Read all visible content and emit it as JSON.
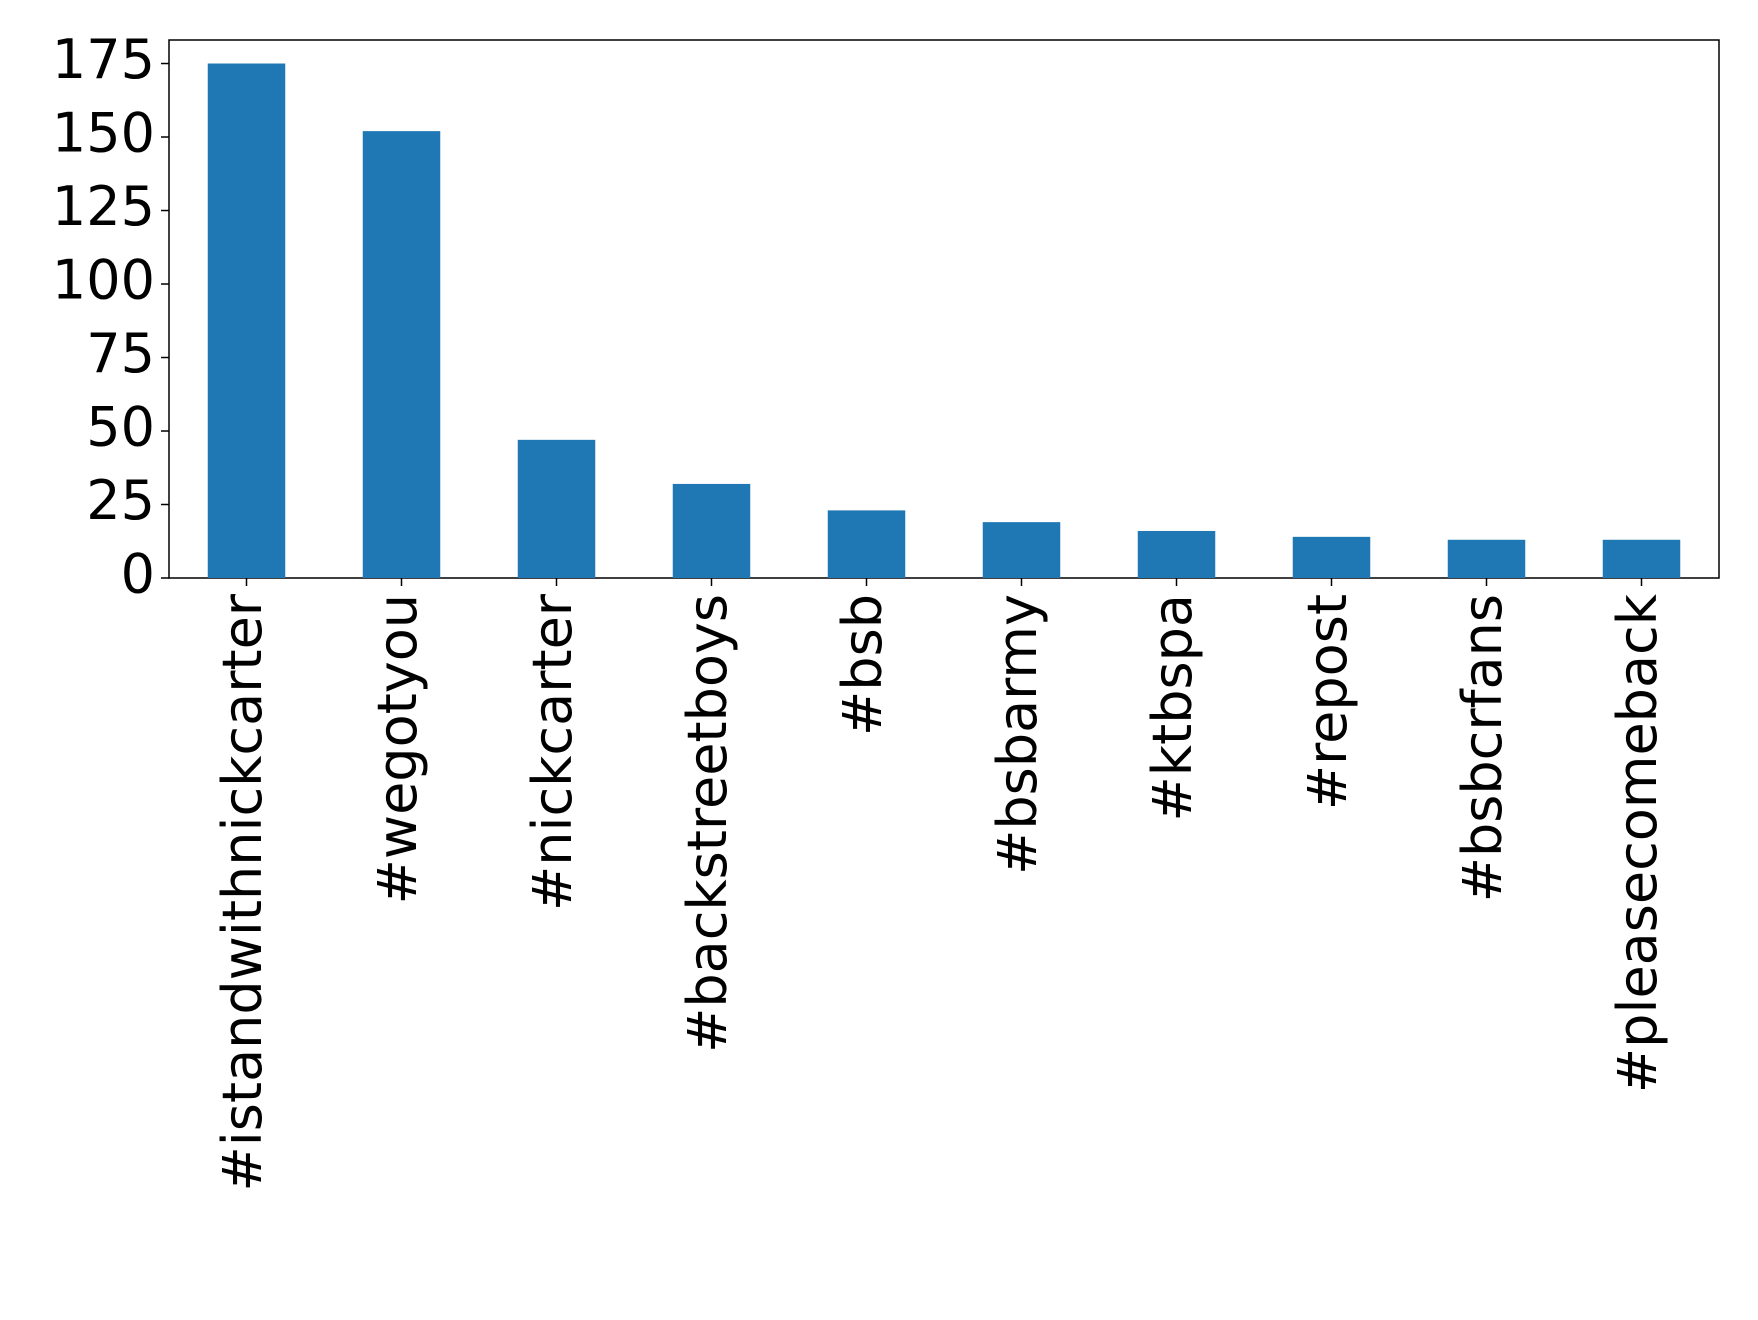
{
  "chart_data": {
    "type": "bar",
    "categories": [
      "#istandwithnickcarter",
      "#wegotyou",
      "#nickcarter",
      "#backstreetboys",
      "#bsb",
      "#bsbarmy",
      "#ktbspa",
      "#repost",
      "#bsbcrfans",
      "#pleasecomeback"
    ],
    "values": [
      175,
      152,
      47,
      32,
      23,
      19,
      16,
      14,
      13,
      13
    ],
    "color": "#1f77b4",
    "ylim": [
      0,
      183
    ],
    "yticks": [
      0,
      25,
      50,
      75,
      100,
      125,
      150,
      175
    ],
    "grid": false
  }
}
